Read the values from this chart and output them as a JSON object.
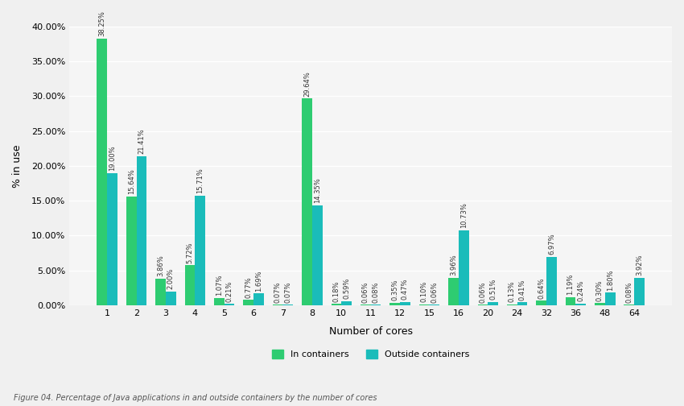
{
  "categories": [
    1,
    2,
    3,
    4,
    5,
    6,
    7,
    8,
    10,
    11,
    12,
    15,
    16,
    20,
    24,
    32,
    36,
    48,
    64
  ],
  "in_containers": [
    38.25,
    15.64,
    3.86,
    5.72,
    1.07,
    0.77,
    0.07,
    29.64,
    0.18,
    0.06,
    0.35,
    0.1,
    3.96,
    0.06,
    0.13,
    0.64,
    1.19,
    0.3,
    0.08
  ],
  "outside_containers": [
    19.0,
    21.41,
    2.0,
    15.71,
    0.21,
    1.69,
    0.07,
    14.35,
    0.59,
    0.08,
    0.47,
    0.06,
    10.73,
    0.51,
    0.41,
    6.97,
    0.24,
    1.8,
    3.92
  ],
  "in_containers_labels": [
    "38.25%",
    "15.64%",
    "3.86%",
    "5.72%",
    "1.07%",
    "0.77%",
    "0.07%",
    "29.64%",
    "0.18%",
    "0.06%",
    "0.35%",
    "0.10%",
    "3.96%",
    "0.06%",
    "0.13%",
    "0.64%",
    "1.19%",
    "0.30%",
    "0.08%"
  ],
  "outside_containers_labels": [
    "19.00%",
    "21.41%",
    "2.00%",
    "15.71%",
    "0.21%",
    "1.69%",
    "0.07%",
    "14.35%",
    "0.59%",
    "0.08%",
    "0.47%",
    "0.06%",
    "10.73%",
    "0.51%",
    "0.41%",
    "6.97%",
    "0.24%",
    "1.80%",
    "3.92%"
  ],
  "color_in": "#2ecc71",
  "color_out": "#1abcba",
  "xlabel": "Number of cores",
  "ylabel": "% in use",
  "ylim": [
    0,
    40
  ],
  "yticks": [
    0,
    5,
    10,
    15,
    20,
    25,
    30,
    35,
    40
  ],
  "background_color": "#f0f0f0",
  "plot_bg": "#f5f5f5",
  "legend_in": "In containers",
  "legend_out": "Outside containers",
  "caption": "Figure 04. Percentage of Java applications in and outside containers by the number of cores",
  "label_fontsize": 6,
  "axis_fontsize": 8
}
